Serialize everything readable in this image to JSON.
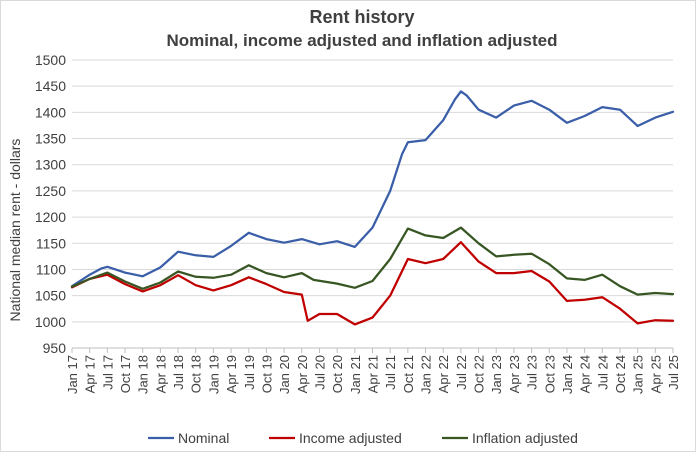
{
  "chart_data": {
    "type": "line",
    "title": "Rent history",
    "subtitle": "Nominal, income adjusted and inflation adjusted",
    "xlabel": "",
    "ylabel": "National median rent - dollars",
    "ylim": [
      950,
      1500
    ],
    "yticks": [
      950,
      1000,
      1050,
      1100,
      1150,
      1200,
      1250,
      1300,
      1350,
      1400,
      1450,
      1500
    ],
    "x_start": "2017-01",
    "x_end": "2025-07",
    "x_tick_labels": [
      "Jan 17",
      "Apr 17",
      "Jul 17",
      "Oct 17",
      "Jan 18",
      "Apr 18",
      "Jul 18",
      "Oct 18",
      "Jan 19",
      "Apr 19",
      "Jul 19",
      "Oct 19",
      "Jan 20",
      "Apr 20",
      "Jul 20",
      "Oct 20",
      "Jan 21",
      "Apr 21",
      "Jul 21",
      "Oct 21",
      "Jan 22",
      "Apr 22",
      "Jul 22",
      "Oct 22",
      "Jan 23",
      "Apr 23",
      "Jul 23",
      "Oct 23",
      "Jan 24",
      "Apr 24",
      "Jul 24",
      "Oct 24",
      "Jan 25",
      "Apr 25",
      "Jul 25"
    ],
    "grid": "horizontal",
    "legend_position": "bottom",
    "series": [
      {
        "name": "Nominal",
        "color": "#3a5ea8",
        "points": [
          [
            "2017-01",
            1068
          ],
          [
            "2017-04",
            1090
          ],
          [
            "2017-06",
            1102
          ],
          [
            "2017-07",
            1105
          ],
          [
            "2017-10",
            1094
          ],
          [
            "2018-01",
            1087
          ],
          [
            "2018-04",
            1104
          ],
          [
            "2018-07",
            1134
          ],
          [
            "2018-10",
            1127
          ],
          [
            "2019-01",
            1124
          ],
          [
            "2019-04",
            1145
          ],
          [
            "2019-07",
            1170
          ],
          [
            "2019-10",
            1158
          ],
          [
            "2020-01",
            1151
          ],
          [
            "2020-04",
            1158
          ],
          [
            "2020-07",
            1148
          ],
          [
            "2020-10",
            1154
          ],
          [
            "2021-01",
            1143
          ],
          [
            "2021-04",
            1180
          ],
          [
            "2021-07",
            1250
          ],
          [
            "2021-09",
            1320
          ],
          [
            "2021-10",
            1343
          ],
          [
            "2022-01",
            1347
          ],
          [
            "2022-04",
            1385
          ],
          [
            "2022-06",
            1425
          ],
          [
            "2022-07",
            1440
          ],
          [
            "2022-08",
            1432
          ],
          [
            "2022-10",
            1405
          ],
          [
            "2023-01",
            1390
          ],
          [
            "2023-04",
            1413
          ],
          [
            "2023-07",
            1422
          ],
          [
            "2023-10",
            1405
          ],
          [
            "2024-01",
            1380
          ],
          [
            "2024-04",
            1393
          ],
          [
            "2024-07",
            1410
          ],
          [
            "2024-10",
            1405
          ],
          [
            "2025-01",
            1374
          ],
          [
            "2025-04",
            1390
          ],
          [
            "2025-07",
            1401
          ]
        ]
      },
      {
        "name": "Income adjusted",
        "color": "#c00000",
        "points": [
          [
            "2017-01",
            1066
          ],
          [
            "2017-04",
            1082
          ],
          [
            "2017-07",
            1090
          ],
          [
            "2017-10",
            1072
          ],
          [
            "2018-01",
            1058
          ],
          [
            "2018-04",
            1070
          ],
          [
            "2018-07",
            1089
          ],
          [
            "2018-10",
            1070
          ],
          [
            "2019-01",
            1060
          ],
          [
            "2019-04",
            1070
          ],
          [
            "2019-07",
            1085
          ],
          [
            "2019-10",
            1072
          ],
          [
            "2020-01",
            1057
          ],
          [
            "2020-04",
            1052
          ],
          [
            "2020-05",
            1002
          ],
          [
            "2020-07",
            1015
          ],
          [
            "2020-10",
            1015
          ],
          [
            "2021-01",
            995
          ],
          [
            "2021-04",
            1008
          ],
          [
            "2021-07",
            1050
          ],
          [
            "2021-10",
            1120
          ],
          [
            "2022-01",
            1112
          ],
          [
            "2022-04",
            1120
          ],
          [
            "2022-07",
            1152
          ],
          [
            "2022-10",
            1115
          ],
          [
            "2023-01",
            1093
          ],
          [
            "2023-04",
            1093
          ],
          [
            "2023-07",
            1097
          ],
          [
            "2023-10",
            1077
          ],
          [
            "2024-01",
            1040
          ],
          [
            "2024-04",
            1042
          ],
          [
            "2024-07",
            1047
          ],
          [
            "2024-10",
            1025
          ],
          [
            "2025-01",
            997
          ],
          [
            "2025-04",
            1003
          ],
          [
            "2025-07",
            1002
          ]
        ]
      },
      {
        "name": "Inflation adjusted",
        "color": "#375623",
        "points": [
          [
            "2017-01",
            1067
          ],
          [
            "2017-04",
            1082
          ],
          [
            "2017-07",
            1094
          ],
          [
            "2017-10",
            1077
          ],
          [
            "2018-01",
            1063
          ],
          [
            "2018-04",
            1075
          ],
          [
            "2018-07",
            1096
          ],
          [
            "2018-10",
            1086
          ],
          [
            "2019-01",
            1084
          ],
          [
            "2019-04",
            1090
          ],
          [
            "2019-07",
            1108
          ],
          [
            "2019-10",
            1093
          ],
          [
            "2020-01",
            1085
          ],
          [
            "2020-04",
            1093
          ],
          [
            "2020-06",
            1080
          ],
          [
            "2020-10",
            1073
          ],
          [
            "2021-01",
            1065
          ],
          [
            "2021-04",
            1078
          ],
          [
            "2021-07",
            1120
          ],
          [
            "2021-10",
            1178
          ],
          [
            "2022-01",
            1165
          ],
          [
            "2022-04",
            1160
          ],
          [
            "2022-07",
            1180
          ],
          [
            "2022-10",
            1150
          ],
          [
            "2023-01",
            1125
          ],
          [
            "2023-04",
            1128
          ],
          [
            "2023-07",
            1130
          ],
          [
            "2023-10",
            1110
          ],
          [
            "2024-01",
            1083
          ],
          [
            "2024-04",
            1080
          ],
          [
            "2024-07",
            1090
          ],
          [
            "2024-10",
            1068
          ],
          [
            "2025-01",
            1052
          ],
          [
            "2025-04",
            1055
          ],
          [
            "2025-07",
            1053
          ]
        ]
      }
    ]
  }
}
